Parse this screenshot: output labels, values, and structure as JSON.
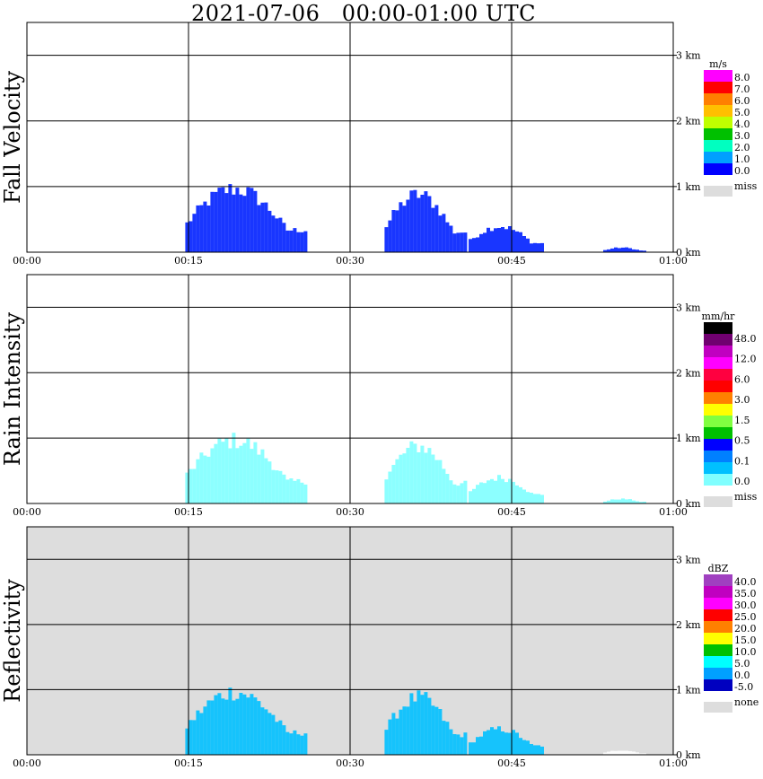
{
  "page": {
    "title": "2021-07-06   00:00-01:00 UTC"
  },
  "chart_data": [
    {
      "type": "heatmap",
      "ylabel": "Fall Velocity",
      "x_ticks": [
        "00:00",
        "00:15",
        "00:30",
        "00:45",
        "01:00"
      ],
      "x_range_min": [
        0,
        60
      ],
      "y_ticks": [
        "0 km",
        "1 km",
        "2 km",
        "3 km"
      ],
      "y_range_km": [
        0,
        3.5
      ],
      "background": "#ffffff",
      "colorbar": {
        "unit": "m/s",
        "labels": [
          "8.0",
          "7.0",
          "6.0",
          "5.0",
          "4.0",
          "3.0",
          "2.0",
          "1.0",
          "0.0"
        ],
        "colors": [
          "#ff00ff",
          "#ff0000",
          "#ff7f00",
          "#ffbf00",
          "#bfff00",
          "#00c000",
          "#00ffc0",
          "#00a0ff",
          "#0000ff"
        ],
        "miss_label": "miss",
        "miss_color": "#dddddd"
      },
      "echo_regions": [
        {
          "start_min": 14.7,
          "end_min": 26.0,
          "top_km": 1.1,
          "color": "#0020ff"
        },
        {
          "start_min": 33.2,
          "end_min": 40.8,
          "top_km": 1.0,
          "color": "#0020ff"
        },
        {
          "start_min": 41.0,
          "end_min": 48.0,
          "top_km": 0.45,
          "color": "#0020ff"
        },
        {
          "start_min": 53.5,
          "end_min": 57.5,
          "top_km": 0.08,
          "color": "#0020ff"
        }
      ]
    },
    {
      "type": "heatmap",
      "ylabel": "Rain Intensity",
      "x_ticks": [
        "00:00",
        "00:15",
        "00:30",
        "00:45",
        "01:00"
      ],
      "x_range_min": [
        0,
        60
      ],
      "y_ticks": [
        "0 km",
        "1 km",
        "2 km",
        "3 km"
      ],
      "y_range_km": [
        0,
        3.5
      ],
      "background": "#ffffff",
      "colorbar": {
        "unit": "mm/hr",
        "labels": [
          "48.0",
          "12.0",
          "6.0",
          "3.0",
          "1.5",
          "0.5",
          "0.1",
          "0.0"
        ],
        "colors": [
          "#000000",
          "#700070",
          "#c000c0",
          "#ff00ff",
          "#ff0040",
          "#ff0000",
          "#ff8000",
          "#ffff00",
          "#80ff40",
          "#00c000",
          "#0000ff",
          "#0080ff",
          "#00c0ff",
          "#80ffff"
        ],
        "miss_label": "miss",
        "miss_color": "#dddddd"
      },
      "echo_regions": [
        {
          "start_min": 14.7,
          "end_min": 26.0,
          "top_km": 1.1,
          "color": "#80ffff"
        },
        {
          "start_min": 33.2,
          "end_min": 40.8,
          "top_km": 1.0,
          "color": "#80ffff"
        },
        {
          "start_min": 41.0,
          "end_min": 48.0,
          "top_km": 0.45,
          "color": "#80ffff"
        },
        {
          "start_min": 53.5,
          "end_min": 57.5,
          "top_km": 0.08,
          "color": "#80ffff"
        }
      ]
    },
    {
      "type": "heatmap",
      "ylabel": "Reflectivity",
      "x_ticks": [
        "00:00",
        "00:15",
        "00:30",
        "00:45",
        "01:00"
      ],
      "x_range_min": [
        0,
        60
      ],
      "y_ticks": [
        "0 km",
        "1 km",
        "2 km",
        "3 km"
      ],
      "y_range_km": [
        0,
        3.5
      ],
      "background": "#dddddd",
      "colorbar": {
        "unit": "dBZ",
        "labels": [
          "40.0",
          "35.0",
          "30.0",
          "25.0",
          "20.0",
          "15.0",
          "10.0",
          "5.0",
          "0.0",
          "-5.0"
        ],
        "colors": [
          "#a040c0",
          "#c000c0",
          "#ff00ff",
          "#ff0000",
          "#ff8000",
          "#ffff00",
          "#00c000",
          "#00ffff",
          "#00a0ff",
          "#0000c0"
        ],
        "miss_label": "none",
        "miss_color": "#dddddd"
      },
      "echo_regions": [
        {
          "start_min": 14.7,
          "end_min": 26.0,
          "top_km": 1.1,
          "color": "#00c0ff"
        },
        {
          "start_min": 33.2,
          "end_min": 40.8,
          "top_km": 1.0,
          "color": "#00c0ff"
        },
        {
          "start_min": 41.0,
          "end_min": 48.0,
          "top_km": 0.45,
          "color": "#00c0ff"
        },
        {
          "start_min": 53.5,
          "end_min": 57.5,
          "top_km": 0.08,
          "color": "#ffffff"
        }
      ]
    }
  ]
}
